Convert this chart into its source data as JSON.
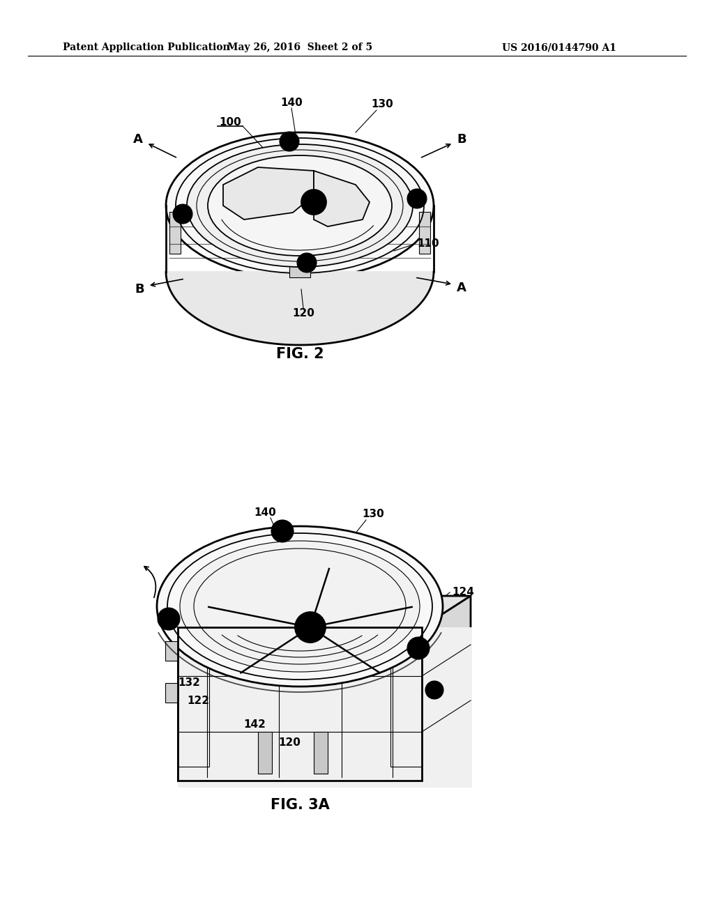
{
  "bg_color": "#ffffff",
  "line_color": "#000000",
  "header_left": "Patent Application Publication",
  "header_mid": "May 26, 2016  Sheet 2 of 5",
  "header_right": "US 2016/0144790 A1",
  "fig2_label": "FIG. 2",
  "fig3a_label": "FIG. 3A",
  "header_fontsize": 10,
  "label_fontsize": 11,
  "fig_label_fontsize": 15
}
